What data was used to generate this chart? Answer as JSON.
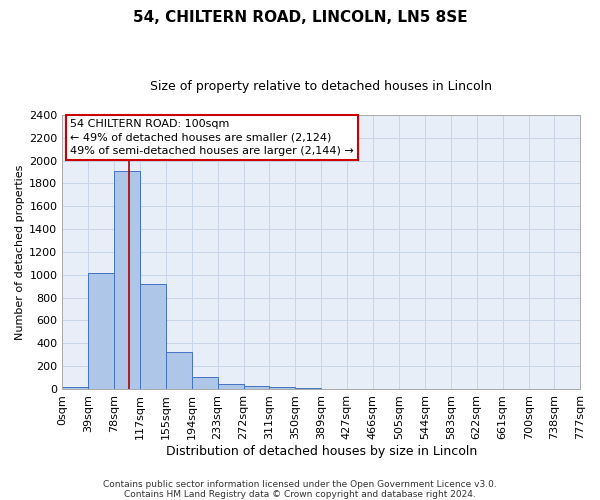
{
  "title": "54, CHILTERN ROAD, LINCOLN, LN5 8SE",
  "subtitle": "Size of property relative to detached houses in Lincoln",
  "xlabel": "Distribution of detached houses by size in Lincoln",
  "ylabel": "Number of detached properties",
  "footnote1": "Contains HM Land Registry data © Crown copyright and database right 2024.",
  "footnote2": "Contains public sector information licensed under the Open Government Licence v3.0.",
  "bin_edges": [
    0,
    39,
    78,
    117,
    155,
    194,
    233,
    272,
    311,
    350,
    389,
    427,
    466,
    505,
    544,
    583,
    622,
    661,
    700,
    738,
    777
  ],
  "bin_labels": [
    "0sqm",
    "39sqm",
    "78sqm",
    "117sqm",
    "155sqm",
    "194sqm",
    "233sqm",
    "272sqm",
    "311sqm",
    "350sqm",
    "389sqm",
    "427sqm",
    "466sqm",
    "505sqm",
    "544sqm",
    "583sqm",
    "622sqm",
    "661sqm",
    "700sqm",
    "738sqm",
    "777sqm"
  ],
  "bar_heights": [
    20,
    1020,
    1910,
    920,
    320,
    105,
    45,
    25,
    15,
    5,
    0,
    0,
    0,
    0,
    0,
    0,
    0,
    0,
    0,
    0
  ],
  "bar_color": "#aec6e8",
  "bar_edge_color": "#4472c4",
  "grid_color": "#c8d4e8",
  "bg_color": "#e8eef8",
  "property_line_x": 100,
  "property_line_color": "#aa0000",
  "annotation_line1": "54 CHILTERN ROAD: 100sqm",
  "annotation_line2": "← 49% of detached houses are smaller (2,124)",
  "annotation_line3": "49% of semi-detached houses are larger (2,144) →",
  "ylim": [
    0,
    2400
  ],
  "yticks": [
    0,
    200,
    400,
    600,
    800,
    1000,
    1200,
    1400,
    1600,
    1800,
    2000,
    2200,
    2400
  ],
  "title_fontsize": 11,
  "subtitle_fontsize": 9,
  "ylabel_fontsize": 8,
  "xlabel_fontsize": 9,
  "tick_fontsize": 8,
  "annot_fontsize": 8,
  "footnote_fontsize": 6.5
}
